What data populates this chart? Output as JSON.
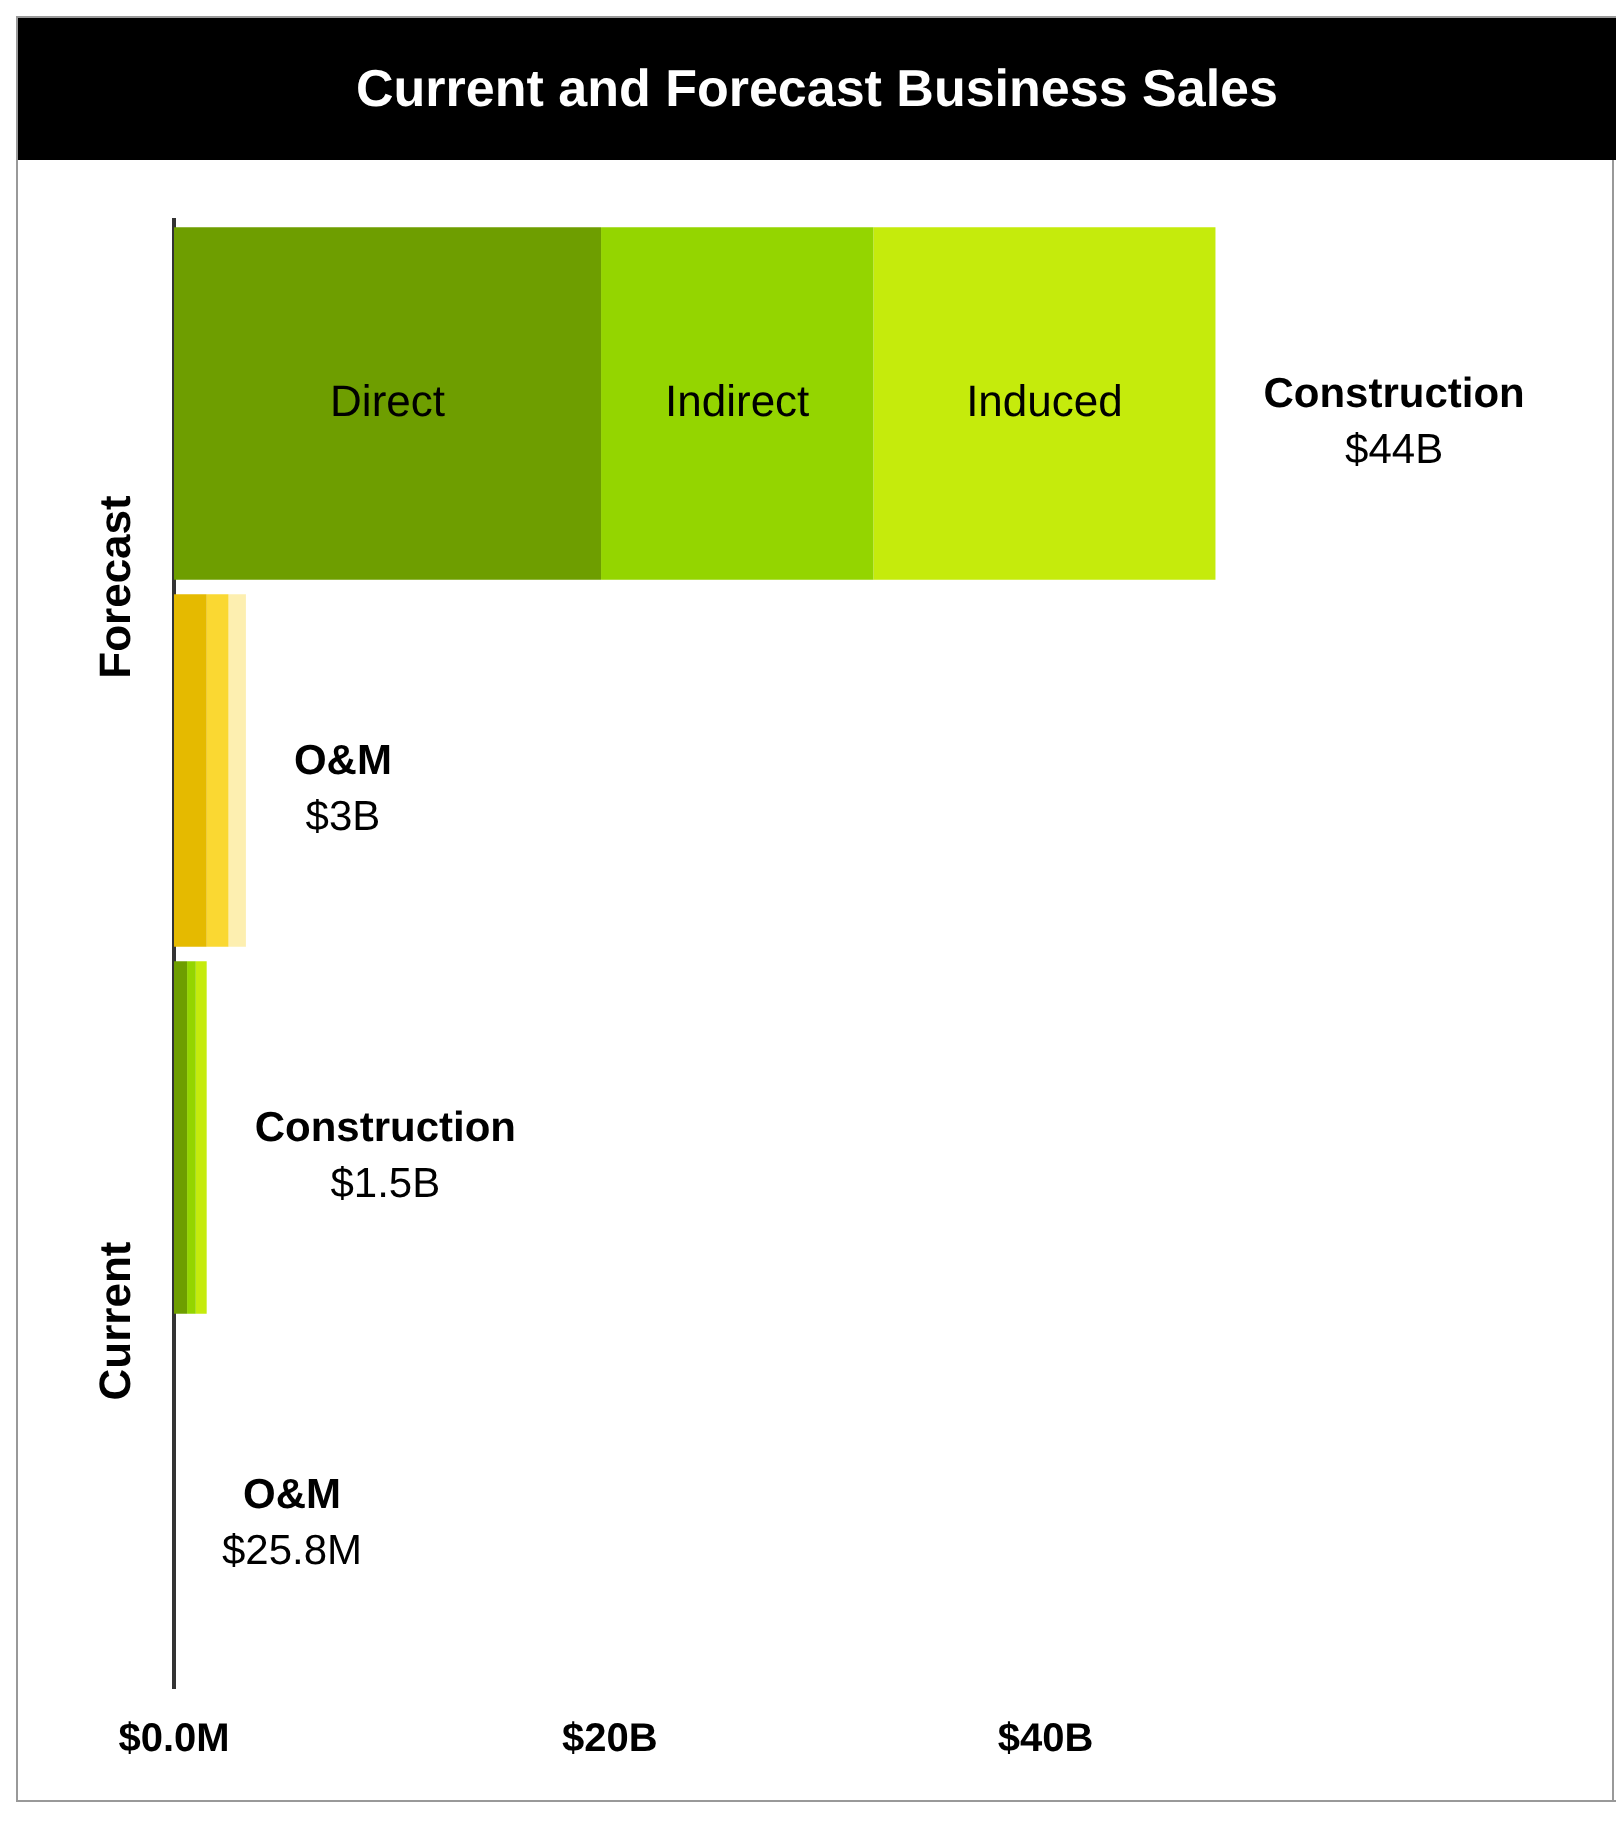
{
  "chart_data": {
    "type": "bar",
    "title": "Current and Forecast Business Sales",
    "orientation": "horizontal",
    "stacked": true,
    "categories": [
      null,
      null,
      null,
      null
    ],
    "series": [
      {
        "name": "Direct",
        "values": [
          19.6,
          1.5,
          0.6,
          null
        ],
        "colors": [
          "#6e9e00",
          "#e5ba00",
          "#6e9e00",
          "#6e9e00"
        ]
      },
      {
        "name": "Indirect",
        "values": [
          12.5,
          1.0,
          0.4,
          null
        ],
        "colors": [
          "#94d500",
          "#fad832",
          "#94d500",
          "#94d500"
        ]
      },
      {
        "name": "Induced",
        "values": [
          15.7,
          0.8,
          0.5,
          null
        ],
        "colors": [
          "#c5eb0c",
          "#fdefb0",
          "#c5eb0c",
          "#c5eb0c"
        ]
      }
    ],
    "annotations": [
      "Forecast",
      "Current",
      "Construction",
      "$44B",
      "O&M",
      "$3B",
      "Construction",
      "$1.5B",
      "O&M",
      "$25.8M"
    ],
    "xlim": [
      0,
      66
    ],
    "xticks": [
      {
        "value": 0,
        "label": "$0.0M"
      },
      {
        "value": 20,
        "label": "$20B"
      },
      {
        "value": 40,
        "label": "$40B"
      }
    ],
    "grid": false,
    "legend": false
  }
}
